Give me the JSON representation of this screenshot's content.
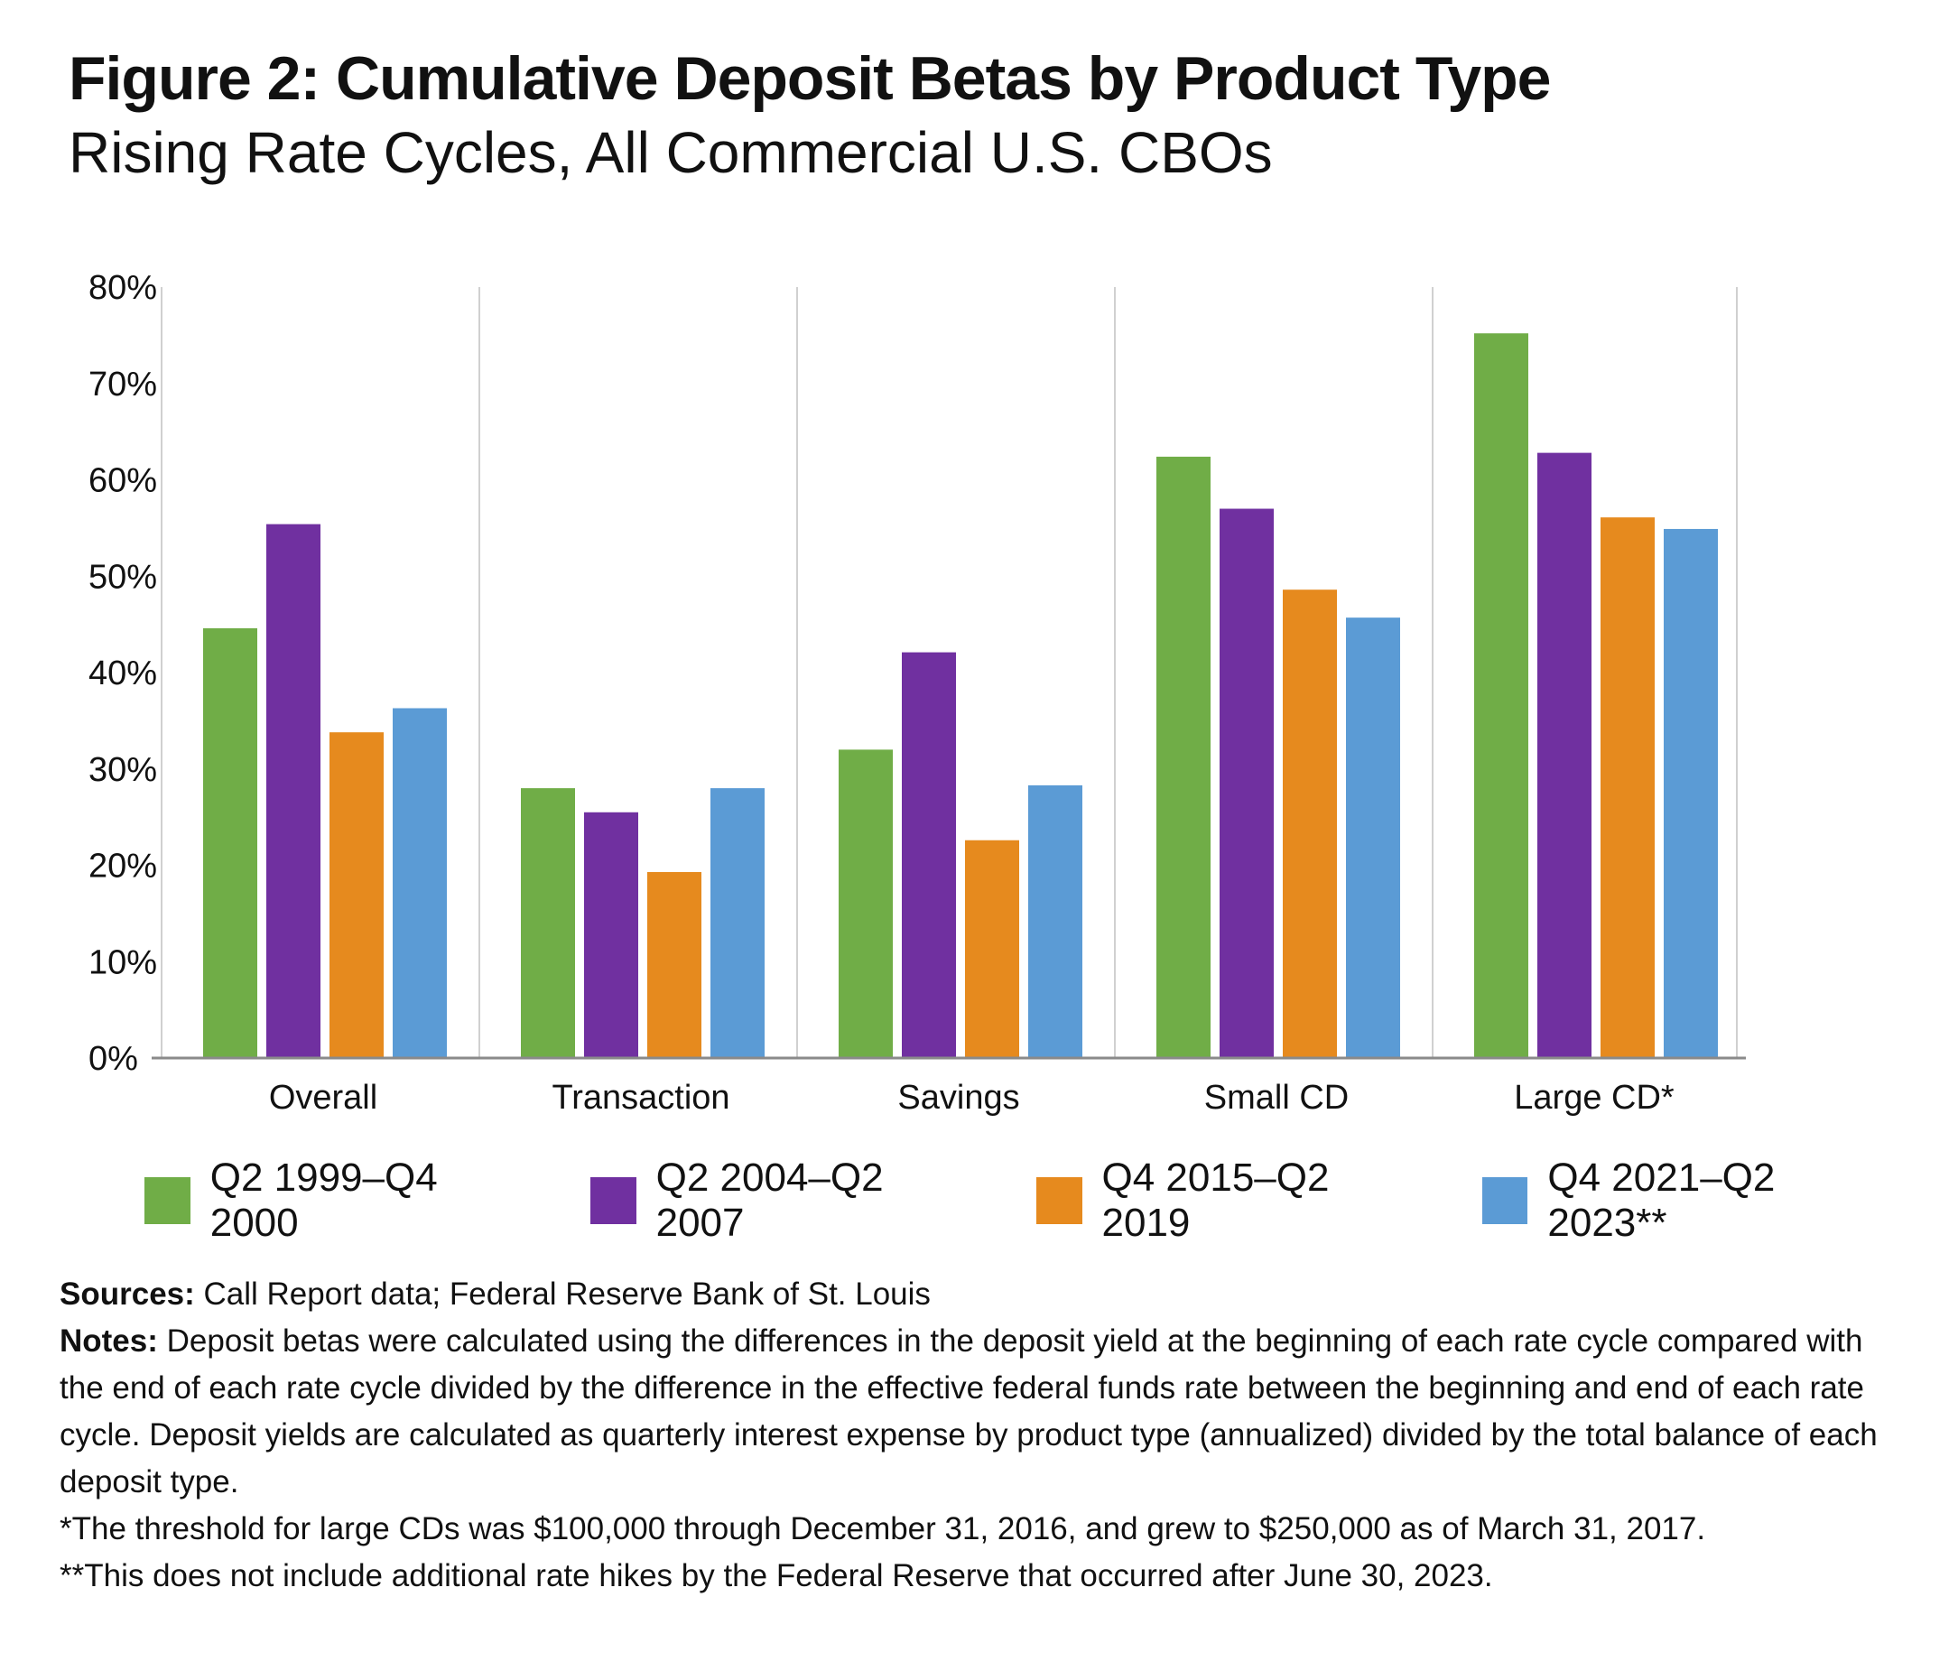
{
  "title": "Figure 2: Cumulative Deposit Betas by Product Type",
  "subtitle": "Rising Rate Cycles, All Commercial U.S. CBOs",
  "chart_data": {
    "type": "bar",
    "categories": [
      "Overall",
      "Transaction",
      "Savings",
      "Small CD",
      "Large CD*"
    ],
    "series": [
      {
        "name": "Q2 1999–Q4 2000",
        "color": "#70AD47",
        "values": [
          44.6,
          28.0,
          32.0,
          62.4,
          75.2
        ]
      },
      {
        "name": "Q2 2004–Q2 2007",
        "color": "#7030A0",
        "values": [
          55.4,
          25.5,
          42.1,
          57.0,
          62.8
        ]
      },
      {
        "name": "Q4 2015–Q2 2019",
        "color": "#E68A1E",
        "values": [
          33.8,
          19.3,
          22.6,
          48.6,
          56.1
        ]
      },
      {
        "name": "Q4 2021–Q2 2023**",
        "color": "#5B9BD5",
        "values": [
          36.3,
          28.0,
          28.3,
          45.7,
          54.9
        ]
      }
    ],
    "yticks": [
      "0%",
      "10%",
      "20%",
      "30%",
      "40%",
      "50%",
      "60%",
      "70%",
      "80%"
    ],
    "ylim": [
      0,
      80
    ],
    "grid": "vertical separators between categories",
    "legend": "bottom"
  },
  "notes": {
    "sources_label": "Sources:",
    "sources_text": " Call Report data; Federal Reserve Bank of St. Louis",
    "notes_label": "Notes:",
    "notes_text": " Deposit betas were calculated using the differences in the deposit yield at the beginning of each rate cycle compared with the end of each rate cycle divided by the difference in the effective federal funds rate between the beginning and end of each rate cycle. Deposit yields are calculated as quarterly interest expense by product type (annualized) divided by the total balance of each deposit type.",
    "footnote1": "*The threshold for large CDs was $100,000 through December 31, 2016, and grew to $250,000 as of March 31, 2017.",
    "footnote2": "**This does not include additional rate hikes by the Federal Reserve that occurred after June 30, 2023."
  }
}
